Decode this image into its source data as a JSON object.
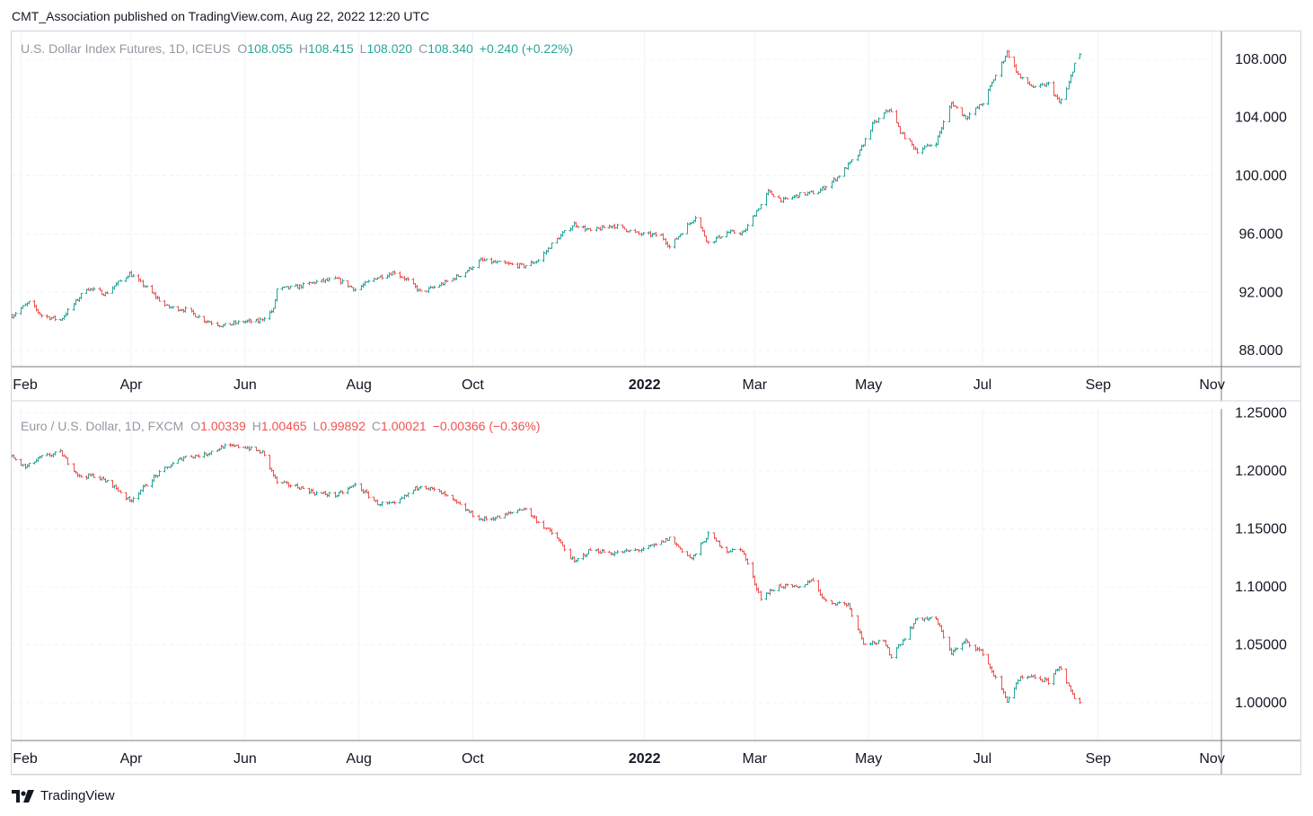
{
  "header": {
    "published_text": "CMT_Association published on TradingView.com, Aug 22, 2022 12:20 UTC"
  },
  "footer": {
    "brand": "TradingView",
    "logo_icon": "tradingview-logo-icon"
  },
  "colors": {
    "up": "#26a69a",
    "down": "#ef5350",
    "grid": "#f0f3fa",
    "axis_text": "#131722",
    "muted_text": "#9598a1"
  },
  "time_axis_labels": [
    {
      "label": "Feb",
      "date": "2021-02-01",
      "bold": false
    },
    {
      "label": "Apr",
      "date": "2021-04-01",
      "bold": false
    },
    {
      "label": "Jun",
      "date": "2021-06-01",
      "bold": false
    },
    {
      "label": "Aug",
      "date": "2021-08-01",
      "bold": false
    },
    {
      "label": "Oct",
      "date": "2021-10-01",
      "bold": false
    },
    {
      "label": "2022",
      "date": "2022-01-01",
      "bold": true
    },
    {
      "label": "Mar",
      "date": "2022-03-01",
      "bold": false
    },
    {
      "label": "May",
      "date": "2022-05-01",
      "bold": false
    },
    {
      "label": "Jul",
      "date": "2022-07-01",
      "bold": false
    },
    {
      "label": "Sep",
      "date": "2022-09-01",
      "bold": false
    },
    {
      "label": "Nov",
      "date": "2022-11-01",
      "bold": false
    }
  ],
  "chart_data": [
    {
      "type": "ohlc_bar",
      "symbol_line": "U.S. Dollar Index Futures, 1D, ICEUS",
      "ohlc_labels": {
        "o": "O",
        "h": "H",
        "l": "L",
        "c": "C"
      },
      "ohlc_values": {
        "o": "108.055",
        "h": "108.415",
        "l": "108.020",
        "c": "108.340",
        "change": "+0.240 (+0.22%)"
      },
      "legend_color": "#26a69a",
      "y_ticks": [
        "88.000",
        "92.000",
        "96.000",
        "100.000",
        "104.000",
        "108.000"
      ],
      "y_tick_values": [
        88,
        92,
        96,
        100,
        104,
        108
      ],
      "ylim": [
        86.9,
        109.9
      ],
      "x_range": [
        "2021-01-27",
        "2022-11-06"
      ],
      "close_series": [
        [
          "2021-01-27",
          90.4
        ],
        [
          "2021-02-05",
          91.3
        ],
        [
          "2021-02-12",
          90.4
        ],
        [
          "2021-02-22",
          90.1
        ],
        [
          "2021-03-08",
          92.3
        ],
        [
          "2021-03-18",
          91.9
        ],
        [
          "2021-03-31",
          93.3
        ],
        [
          "2021-04-09",
          92.3
        ],
        [
          "2021-04-20",
          91.0
        ],
        [
          "2021-04-30",
          90.8
        ],
        [
          "2021-05-10",
          90.1
        ],
        [
          "2021-05-20",
          89.7
        ],
        [
          "2021-05-31",
          90.0
        ],
        [
          "2021-06-08",
          90.0
        ],
        [
          "2021-06-16",
          90.8
        ],
        [
          "2021-06-18",
          92.2
        ],
        [
          "2021-06-30",
          92.4
        ],
        [
          "2021-07-08",
          92.7
        ],
        [
          "2021-07-20",
          92.9
        ],
        [
          "2021-07-30",
          92.2
        ],
        [
          "2021-08-10",
          93.0
        ],
        [
          "2021-08-20",
          93.4
        ],
        [
          "2021-08-27",
          92.8
        ],
        [
          "2021-09-03",
          92.0
        ],
        [
          "2021-09-15",
          92.6
        ],
        [
          "2021-09-27",
          93.4
        ],
        [
          "2021-10-05",
          94.2
        ],
        [
          "2021-10-15",
          94.0
        ],
        [
          "2021-10-28",
          93.8
        ],
        [
          "2021-11-05",
          94.2
        ],
        [
          "2021-11-12",
          95.3
        ],
        [
          "2021-11-24",
          96.7
        ],
        [
          "2021-12-03",
          96.2
        ],
        [
          "2021-12-15",
          96.6
        ],
        [
          "2021-12-29",
          96.0
        ],
        [
          "2022-01-10",
          95.9
        ],
        [
          "2022-01-14",
          95.1
        ],
        [
          "2022-01-28",
          97.2
        ],
        [
          "2022-02-04",
          95.4
        ],
        [
          "2022-02-14",
          96.1
        ],
        [
          "2022-02-23",
          96.1
        ],
        [
          "2022-03-03",
          97.8
        ],
        [
          "2022-03-08",
          98.9
        ],
        [
          "2022-03-16",
          98.3
        ],
        [
          "2022-03-25",
          98.7
        ],
        [
          "2022-04-04",
          98.9
        ],
        [
          "2022-04-14",
          99.9
        ],
        [
          "2022-04-25",
          101.4
        ],
        [
          "2022-05-03",
          103.5
        ],
        [
          "2022-05-12",
          104.6
        ],
        [
          "2022-05-19",
          102.8
        ],
        [
          "2022-05-27",
          101.7
        ],
        [
          "2022-06-06",
          102.3
        ],
        [
          "2022-06-14",
          105.0
        ],
        [
          "2022-06-22",
          104.0
        ],
        [
          "2022-07-01",
          105.0
        ],
        [
          "2022-07-14",
          108.5
        ],
        [
          "2022-07-21",
          106.7
        ],
        [
          "2022-07-29",
          106.0
        ],
        [
          "2022-08-05",
          106.3
        ],
        [
          "2022-08-11",
          105.0
        ],
        [
          "2022-08-15",
          105.9
        ],
        [
          "2022-08-19",
          107.7
        ],
        [
          "2022-08-22",
          108.34
        ]
      ]
    },
    {
      "type": "ohlc_bar",
      "symbol_line": "Euro / U.S. Dollar, 1D, FXCM",
      "ohlc_labels": {
        "o": "O",
        "h": "H",
        "l": "L",
        "c": "C"
      },
      "ohlc_values": {
        "o": "1.00339",
        "h": "1.00465",
        "l": "0.99892",
        "c": "1.00021",
        "change": "−0.00366 (−0.36%)"
      },
      "legend_color": "#ef5350",
      "y_ticks": [
        "1.00000",
        "1.05000",
        "1.10000",
        "1.15000",
        "1.20000",
        "1.25000"
      ],
      "y_tick_values": [
        1.0,
        1.05,
        1.1,
        1.15,
        1.2,
        1.25
      ],
      "ylim": [
        0.9675,
        1.2535
      ],
      "x_range": [
        "2021-01-27",
        "2022-11-06"
      ],
      "close_series": [
        [
          "2021-01-27",
          1.212
        ],
        [
          "2021-02-03",
          1.203
        ],
        [
          "2021-02-12",
          1.212
        ],
        [
          "2021-02-22",
          1.216
        ],
        [
          "2021-03-04",
          1.195
        ],
        [
          "2021-03-12",
          1.196
        ],
        [
          "2021-03-22",
          1.188
        ],
        [
          "2021-03-31",
          1.174
        ],
        [
          "2021-04-12",
          1.193
        ],
        [
          "2021-04-21",
          1.204
        ],
        [
          "2021-04-29",
          1.212
        ],
        [
          "2021-05-10",
          1.214
        ],
        [
          "2021-05-20",
          1.221
        ],
        [
          "2021-05-31",
          1.221
        ],
        [
          "2021-06-10",
          1.216
        ],
        [
          "2021-06-18",
          1.19
        ],
        [
          "2021-06-30",
          1.186
        ],
        [
          "2021-07-08",
          1.181
        ],
        [
          "2021-07-20",
          1.179
        ],
        [
          "2021-07-30",
          1.188
        ],
        [
          "2021-08-11",
          1.172
        ],
        [
          "2021-08-20",
          1.171
        ],
        [
          "2021-08-27",
          1.18
        ],
        [
          "2021-09-03",
          1.188
        ],
        [
          "2021-09-15",
          1.18
        ],
        [
          "2021-09-24",
          1.17
        ],
        [
          "2021-10-05",
          1.158
        ],
        [
          "2021-10-15",
          1.16
        ],
        [
          "2021-10-28",
          1.168
        ],
        [
          "2021-11-05",
          1.156
        ],
        [
          "2021-11-15",
          1.142
        ],
        [
          "2021-11-24",
          1.121
        ],
        [
          "2021-12-03",
          1.132
        ],
        [
          "2021-12-15",
          1.129
        ],
        [
          "2021-12-29",
          1.132
        ],
        [
          "2022-01-07",
          1.136
        ],
        [
          "2022-01-14",
          1.142
        ],
        [
          "2022-01-26",
          1.124
        ],
        [
          "2022-02-04",
          1.145
        ],
        [
          "2022-02-14",
          1.131
        ],
        [
          "2022-02-22",
          1.132
        ],
        [
          "2022-03-04",
          1.091
        ],
        [
          "2022-03-14",
          1.101
        ],
        [
          "2022-03-25",
          1.099
        ],
        [
          "2022-03-31",
          1.107
        ],
        [
          "2022-04-08",
          1.087
        ],
        [
          "2022-04-20",
          1.085
        ],
        [
          "2022-04-28",
          1.052
        ],
        [
          "2022-05-09",
          1.052
        ],
        [
          "2022-05-13",
          1.04
        ],
        [
          "2022-05-27",
          1.073
        ],
        [
          "2022-06-06",
          1.072
        ],
        [
          "2022-06-14",
          1.043
        ],
        [
          "2022-06-22",
          1.053
        ],
        [
          "2022-07-01",
          1.043
        ],
        [
          "2022-07-14",
          1.002
        ],
        [
          "2022-07-21",
          1.021
        ],
        [
          "2022-07-29",
          1.022
        ],
        [
          "2022-08-05",
          1.018
        ],
        [
          "2022-08-11",
          1.032
        ],
        [
          "2022-08-15",
          1.016
        ],
        [
          "2022-08-19",
          1.004
        ],
        [
          "2022-08-22",
          1.0002
        ]
      ]
    }
  ]
}
